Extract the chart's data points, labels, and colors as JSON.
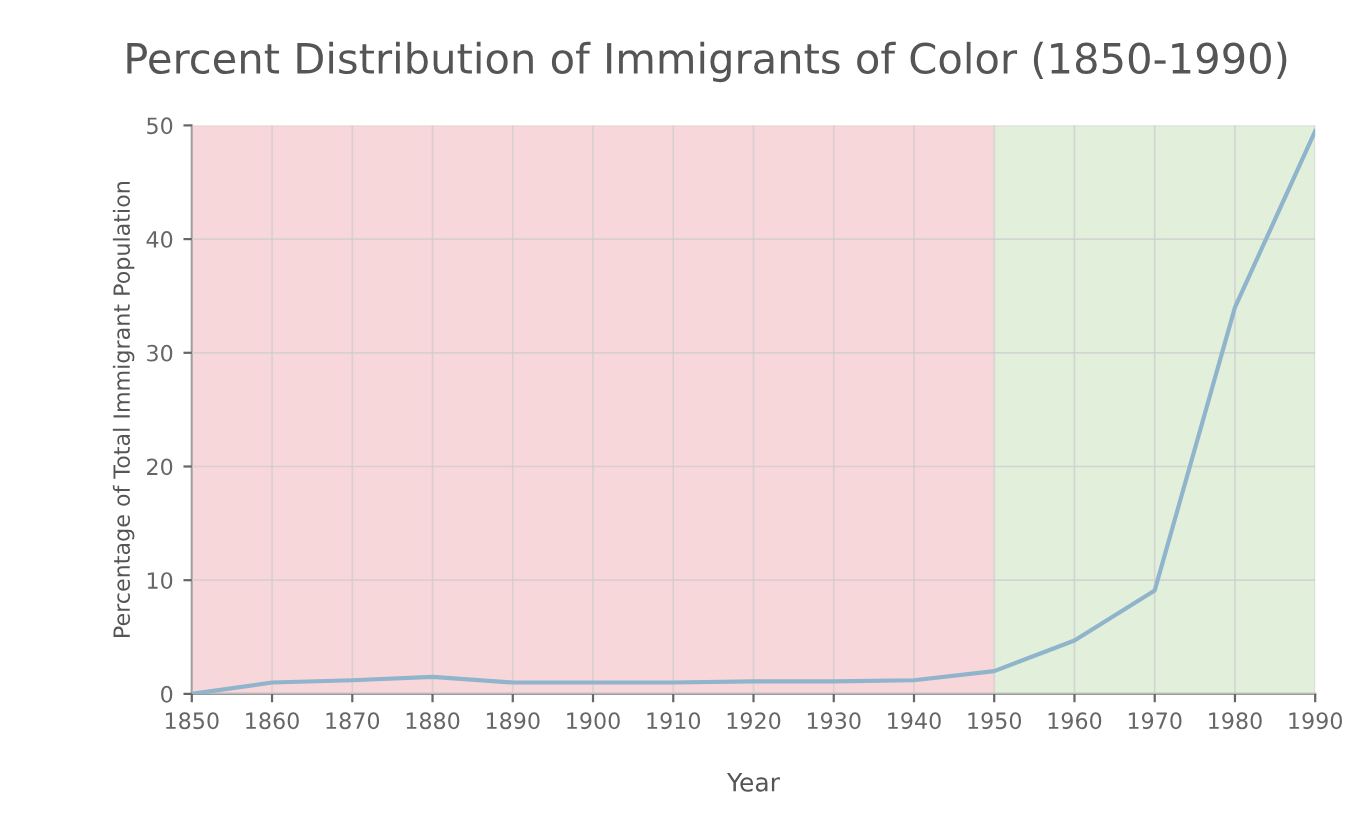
{
  "chart_data": {
    "type": "line",
    "title": "Percent Distribution of Immigrants of Color (1850-1990)",
    "xlabel": "Year",
    "ylabel": "Percentage of Total Immigrant Population",
    "x": [
      1850,
      1860,
      1870,
      1880,
      1890,
      1900,
      1910,
      1920,
      1930,
      1940,
      1950,
      1960,
      1970,
      1980,
      1990
    ],
    "series": [
      {
        "color": "#8fb4cc",
        "values": [
          0,
          1,
          1.2,
          1.5,
          1,
          1,
          1,
          1.1,
          1.1,
          1.2,
          2,
          4.7,
          9.1,
          34,
          49.5
        ]
      }
    ],
    "xlim": [
      1850,
      1990
    ],
    "xticks": [
      1850,
      1860,
      1870,
      1880,
      1890,
      1900,
      1910,
      1920,
      1930,
      1940,
      1950,
      1960,
      1970,
      1980,
      1990
    ],
    "ylim": [
      0,
      50
    ],
    "yticks": [
      0,
      10,
      20,
      30,
      40,
      50
    ],
    "bands": [
      {
        "axis": "x",
        "from": 1850,
        "to": 1950,
        "color": "#f8d7da"
      },
      {
        "axis": "x",
        "from": 1950,
        "to": 1990,
        "color": "#e2efda"
      }
    ],
    "grid": true,
    "legend": false,
    "marker": "none",
    "line_style": "solid"
  }
}
